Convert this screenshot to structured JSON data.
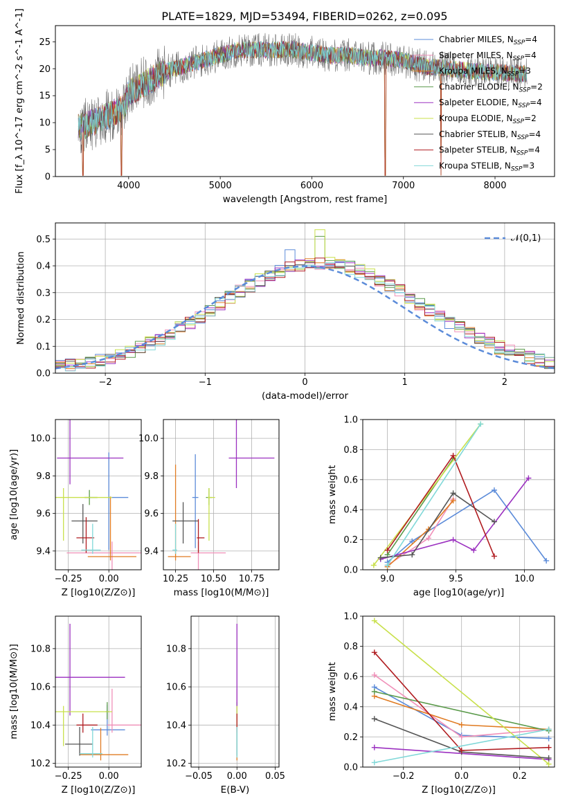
{
  "figure": {
    "title": "PLATE=1829, MJD=53494, FIBERID=0262, z=0.095"
  },
  "models": [
    {
      "name": "Chabrier MILES",
      "nssp": "4",
      "color": "#5b8bd9"
    },
    {
      "name": "Salpeter MILES",
      "nssp": "4",
      "color": "#f08fb8"
    },
    {
      "name": "Kroupa MILES",
      "nssp": "3",
      "color": "#e07b22"
    },
    {
      "name": "Chabrier ELODIE",
      "nssp": "2",
      "color": "#5a9a4a"
    },
    {
      "name": "Salpeter ELODIE",
      "nssp": "4",
      "color": "#9b30c0"
    },
    {
      "name": "Kroupa ELODIE",
      "nssp": "2",
      "color": "#c8e04a"
    },
    {
      "name": "Chabrier STELIB",
      "nssp": "4",
      "color": "#555555"
    },
    {
      "name": "Salpeter STELIB",
      "nssp": "4",
      "color": "#b01c20"
    },
    {
      "name": "Kroupa STELIB",
      "nssp": "3",
      "color": "#80d8d8"
    }
  ],
  "chart_data": [
    {
      "id": "spectrum",
      "type": "line",
      "xlabel": "wavelength [Angstrom, rest frame]",
      "ylabel": "Flux [f_λ 10^-17 erg cm^-2 s^-1 A^-1]",
      "xlim": [
        3200,
        8650
      ],
      "ylim": [
        0,
        28
      ],
      "xticks": [
        4000,
        5000,
        6000,
        7000,
        8000
      ],
      "yticks": [
        0,
        5,
        10,
        15,
        20,
        25
      ],
      "legend_position": "top-right",
      "continuum": {
        "x": [
          3450,
          3600,
          3800,
          3950,
          4000,
          4200,
          4400,
          4600,
          4800,
          5000,
          5200,
          5400,
          5600,
          5800,
          6000,
          6200,
          6400,
          6600,
          6800,
          7000,
          7200,
          7400,
          7600,
          7800,
          8000,
          8200,
          8350
        ],
        "y": [
          9,
          10,
          11.5,
          13,
          15.5,
          17.5,
          19.5,
          20.5,
          21.5,
          22.5,
          23.5,
          23.5,
          23.5,
          23.5,
          23,
          22.5,
          22.5,
          22,
          22,
          21.5,
          20.5,
          20.2,
          19.8,
          19.5,
          19.3,
          19.2,
          19
        ]
      },
      "dips": [
        {
          "x": 3500,
          "y": 0.2
        },
        {
          "x": 3920,
          "y": 0.2
        },
        {
          "x": 6800,
          "y": 0.2
        },
        {
          "x": 7410,
          "y": 0.2
        }
      ]
    },
    {
      "id": "residual-histogram",
      "type": "line",
      "xlabel": "(data-model)/error",
      "ylabel": "Normed distribution",
      "xlim": [
        -2.5,
        2.5
      ],
      "ylim": [
        0,
        0.56
      ],
      "xticks": [
        -2,
        -1,
        0,
        1,
        2
      ],
      "yticks": [
        0,
        0.1,
        0.2,
        0.3,
        0.4,
        0.5
      ],
      "reference": {
        "name": "𝒩(0,1)",
        "mu": 0,
        "sigma": 1,
        "color": "#5b8bd9"
      },
      "bin_edges_start": -2.5,
      "bin_width": 0.1,
      "bins": 50,
      "highlights": [
        {
          "x": 0.15,
          "y": 0.535
        },
        {
          "x": 0.15,
          "y": 0.51
        },
        {
          "x": -0.15,
          "y": 0.46
        }
      ]
    },
    {
      "id": "z-vs-age",
      "type": "scatter",
      "xlabel": "Z [log10(Z/Z⊙)]",
      "ylabel": "age [log10(age/yr)]",
      "xlim": [
        -0.33,
        0.2
      ],
      "ylim": [
        9.3,
        10.1
      ],
      "xticks": [
        -0.25,
        0.0
      ],
      "yticks": [
        9.4,
        9.6,
        9.8,
        10.0
      ],
      "points": [
        {
          "x": 0.0,
          "y": 9.685,
          "xerr": [
            0.0,
            0.12
          ],
          "yerr": [
            0.28,
            0.24
          ]
        },
        {
          "x": 0.02,
          "y": 9.39,
          "xerr": [
            0.28,
            0.18
          ],
          "yerr": [
            0.09,
            0.06
          ]
        },
        {
          "x": 0.01,
          "y": 9.37,
          "xerr": [
            0.14,
            0.16
          ],
          "yerr": [
            0.02,
            0.32
          ]
        },
        {
          "x": -0.12,
          "y": 9.685,
          "xerr": [
            0.03,
            0.05
          ],
          "yerr": [
            0.04,
            0.04
          ]
        },
        {
          "x": -0.24,
          "y": 9.895,
          "xerr": [
            0.08,
            0.33
          ],
          "yerr": [
            0.14,
            0.21
          ]
        },
        {
          "x": -0.28,
          "y": 9.685,
          "xerr": [
            0.06,
            0.3
          ],
          "yerr": [
            0.23,
            0.05
          ]
        },
        {
          "x": -0.16,
          "y": 9.56,
          "xerr": [
            0.07,
            0.09
          ],
          "yerr": [
            0.12,
            0.09
          ]
        },
        {
          "x": -0.14,
          "y": 9.47,
          "xerr": [
            0.06,
            0.05
          ],
          "yerr": [
            0.08,
            0.11
          ]
        },
        {
          "x": -0.1,
          "y": 9.405,
          "xerr": [
            0.07,
            0.05
          ],
          "yerr": [
            0.02,
            0.14
          ]
        }
      ]
    },
    {
      "id": "mass-vs-age",
      "type": "scatter",
      "xlabel": "mass [log10(M/M⊙)]",
      "ylabel": "",
      "xlim": [
        10.17,
        10.93
      ],
      "ylim": [
        9.3,
        10.1
      ],
      "xticks": [
        10.25,
        10.5,
        10.75
      ],
      "yticks": [
        9.4,
        9.6,
        9.8,
        10.0
      ],
      "points": [
        {
          "x": 10.38,
          "y": 9.685,
          "xerr": [
            0.02,
            0.02
          ],
          "yerr": [
            0.27,
            0.23
          ]
        },
        {
          "x": 10.4,
          "y": 9.39,
          "xerr": [
            0.05,
            0.18
          ],
          "yerr": [
            0.09,
            0.06
          ]
        },
        {
          "x": 10.25,
          "y": 9.37,
          "xerr": [
            0.05,
            0.1
          ],
          "yerr": [
            0.02,
            0.49
          ]
        },
        {
          "x": 10.47,
          "y": 9.685,
          "xerr": [
            0.02,
            0.02
          ],
          "yerr": [
            0.04,
            0.05
          ]
        },
        {
          "x": 10.65,
          "y": 9.895,
          "xerr": [
            0.05,
            0.25
          ],
          "yerr": [
            0.16,
            0.21
          ]
        },
        {
          "x": 10.47,
          "y": 9.685,
          "xerr": [
            0.01,
            0.04
          ],
          "yerr": [
            0.23,
            0.05
          ]
        },
        {
          "x": 10.3,
          "y": 9.56,
          "xerr": [
            0.07,
            0.1
          ],
          "yerr": [
            0.12,
            0.1
          ]
        },
        {
          "x": 10.4,
          "y": 9.47,
          "xerr": [
            0.01,
            0.04
          ],
          "yerr": [
            0.08,
            0.1
          ]
        },
        {
          "x": 10.25,
          "y": 9.405,
          "xerr": [
            0.02,
            0.01
          ],
          "yerr": [
            0.02,
            0.14
          ]
        }
      ]
    },
    {
      "id": "mass-weight-vs-age",
      "type": "line",
      "xlabel": "age [log10(age/yr)]",
      "ylabel": "mass weight",
      "xlim": [
        8.82,
        10.22
      ],
      "ylim": [
        0,
        1.0
      ],
      "xticks": [
        9.0,
        9.5,
        10.0
      ],
      "yticks": [
        0,
        0.2,
        0.4,
        0.6,
        0.8,
        1.0
      ],
      "series": [
        {
          "x": [
            9.0,
            9.18,
            9.78,
            10.16
          ],
          "y": [
            0.05,
            0.19,
            0.53,
            0.06
          ]
        },
        {
          "x": [
            9.0,
            9.3,
            9.48
          ],
          "y": [
            0.03,
            0.21,
            0.47
          ]
        },
        {
          "x": [
            9.0,
            9.3,
            9.48
          ],
          "y": [
            0.02,
            0.27,
            0.46
          ]
        },
        {
          "x": [
            9.0,
            9.48
          ],
          "y": [
            0.1,
            0.74
          ]
        },
        {
          "x": [
            8.95,
            9.48,
            9.63,
            10.03
          ],
          "y": [
            0.07,
            0.2,
            0.13,
            0.61
          ]
        },
        {
          "x": [
            8.9,
            9.68
          ],
          "y": [
            0.03,
            0.97
          ]
        },
        {
          "x": [
            8.95,
            9.18,
            9.48,
            9.78
          ],
          "y": [
            0.08,
            0.1,
            0.51,
            0.32
          ]
        },
        {
          "x": [
            9.0,
            9.48,
            9.78
          ],
          "y": [
            0.13,
            0.76,
            0.09
          ]
        },
        {
          "x": [
            9.0,
            9.68
          ],
          "y": [
            0.03,
            0.97
          ]
        }
      ]
    },
    {
      "id": "z-vs-mass",
      "type": "scatter",
      "xlabel": "Z [log10(Z/Z⊙)]",
      "ylabel": "mass [log10(M/M⊙)]",
      "xlim": [
        -0.33,
        0.2
      ],
      "ylim": [
        10.18,
        10.97
      ],
      "xticks": [
        -0.25,
        0.0
      ],
      "yticks": [
        10.2,
        10.4,
        10.6,
        10.8
      ],
      "points": [
        {
          "x": -0.01,
          "y": 10.375,
          "xerr": [
            0.1,
            0.11
          ],
          "yerr": [
            0.03,
            0.13
          ]
        },
        {
          "x": 0.02,
          "y": 10.4,
          "xerr": [
            0.03,
            0.3
          ],
          "yerr": [
            0.04,
            0.19
          ]
        },
        {
          "x": -0.05,
          "y": 10.245,
          "xerr": [
            0.13,
            0.17
          ],
          "yerr": [
            0.03,
            0.14
          ]
        },
        {
          "x": -0.01,
          "y": 10.47,
          "xerr": [
            0.01,
            0.01
          ],
          "yerr": [
            0.04,
            0.05
          ]
        },
        {
          "x": -0.24,
          "y": 10.65,
          "xerr": [
            0.1,
            0.34
          ],
          "yerr": [
            0.2,
            0.28
          ]
        },
        {
          "x": -0.28,
          "y": 10.47,
          "xerr": [
            0.06,
            0.3
          ],
          "yerr": [
            0.18,
            0.03
          ]
        },
        {
          "x": -0.18,
          "y": 10.3,
          "xerr": [
            0.09,
            0.08
          ],
          "yerr": [
            0.06,
            0.09
          ]
        },
        {
          "x": -0.16,
          "y": 10.4,
          "xerr": [
            0.04,
            0.09
          ],
          "yerr": [
            0.04,
            0.06
          ]
        },
        {
          "x": -0.1,
          "y": 10.25,
          "xerr": [
            0.08,
            0.06
          ],
          "yerr": [
            0.02,
            0.14
          ]
        }
      ]
    },
    {
      "id": "ebv-vs-mass",
      "type": "scatter",
      "xlabel": "E(B-V)",
      "ylabel": "",
      "xlim": [
        -0.06,
        0.055
      ],
      "ylim": [
        10.18,
        10.97
      ],
      "xticks": [
        -0.05,
        0.0,
        0.05
      ],
      "yticks": [
        10.2,
        10.4,
        10.6,
        10.8
      ],
      "points": [
        {
          "x": 0.0,
          "y": 10.375,
          "xerr": [
            0,
            0
          ],
          "yerr": [
            0.03,
            0.13
          ]
        },
        {
          "x": 0.0,
          "y": 10.4,
          "xerr": [
            0,
            0
          ],
          "yerr": [
            0.04,
            0.19
          ]
        },
        {
          "x": 0.0,
          "y": 10.245,
          "xerr": [
            0,
            0
          ],
          "yerr": [
            0.03,
            0.14
          ]
        },
        {
          "x": 0.0,
          "y": 10.47,
          "xerr": [
            0,
            0
          ],
          "yerr": [
            0.04,
            0.05
          ]
        },
        {
          "x": 0.0,
          "y": 10.65,
          "xerr": [
            0,
            0
          ],
          "yerr": [
            0.2,
            0.28
          ]
        },
        {
          "x": 0.0,
          "y": 10.47,
          "xerr": [
            0,
            0
          ],
          "yerr": [
            0.18,
            0.03
          ]
        },
        {
          "x": 0.0,
          "y": 10.3,
          "xerr": [
            0,
            0
          ],
          "yerr": [
            0.06,
            0.09
          ]
        },
        {
          "x": 0.0,
          "y": 10.4,
          "xerr": [
            0,
            0
          ],
          "yerr": [
            0.04,
            0.06
          ]
        },
        {
          "x": 0.0,
          "y": 10.25,
          "xerr": [
            0,
            0
          ],
          "yerr": [
            0.02,
            0.14
          ]
        }
      ]
    },
    {
      "id": "mass-weight-vs-z",
      "type": "line",
      "xlabel": "Z [log10(Z/Z⊙)]",
      "ylabel": "mass weight",
      "xlim": [
        -0.34,
        0.32
      ],
      "ylim": [
        0,
        1.0
      ],
      "xticks": [
        -0.2,
        0.0,
        0.2
      ],
      "yticks": [
        0,
        0.2,
        0.4,
        0.6,
        0.8,
        1.0
      ],
      "series": [
        {
          "x": [
            -0.3,
            0.0,
            0.3
          ],
          "y": [
            0.53,
            0.21,
            0.19
          ]
        },
        {
          "x": [
            -0.3,
            0.0,
            0.3
          ],
          "y": [
            0.61,
            0.2,
            0.25
          ]
        },
        {
          "x": [
            -0.3,
            0.0,
            0.3
          ],
          "y": [
            0.47,
            0.28,
            0.25
          ]
        },
        {
          "x": [
            -0.3,
            0.3
          ],
          "y": [
            0.5,
            0.24
          ]
        },
        {
          "x": [
            -0.3,
            0.3
          ],
          "y": [
            0.13,
            0.05
          ]
        },
        {
          "x": [
            -0.3,
            0.3
          ],
          "y": [
            0.97,
            0.02
          ]
        },
        {
          "x": [
            -0.3,
            0.0,
            0.3
          ],
          "y": [
            0.32,
            0.1,
            0.06
          ]
        },
        {
          "x": [
            -0.3,
            0.0,
            0.3
          ],
          "y": [
            0.76,
            0.11,
            0.13
          ]
        },
        {
          "x": [
            -0.3,
            0.3
          ],
          "y": [
            0.03,
            0.25
          ]
        }
      ]
    }
  ]
}
